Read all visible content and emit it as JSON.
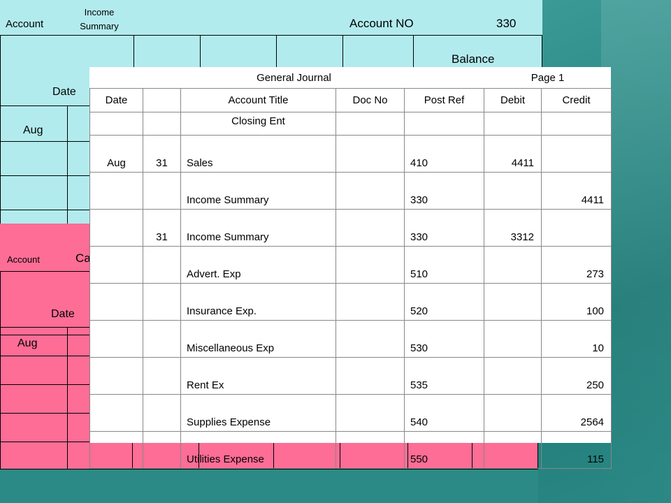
{
  "income_summary_ledger": {
    "account_label": "Account",
    "account_name": "Income Summary",
    "account_no_label": "Account NO",
    "account_no": "330",
    "balance_label": "Balance",
    "date_label": "Date",
    "month": "Aug"
  },
  "capital_ledger": {
    "account_label": "Account",
    "account_name_partial": "Ca",
    "date_label": "Date",
    "month": "Aug"
  },
  "journal": {
    "title": "General Journal",
    "page": "Page 1",
    "columns": [
      "Date",
      "",
      "Account Title",
      "Doc No",
      "Post Ref",
      "Debit",
      "Credit"
    ],
    "heading_row": "Closing Ent",
    "rows": [
      {
        "month": "Aug",
        "day": "31",
        "title": "Sales",
        "doc": "",
        "ref": "410",
        "debit": "4411",
        "credit": ""
      },
      {
        "month": "",
        "day": "",
        "title": "Income Summary",
        "doc": "",
        "ref": "330",
        "debit": "",
        "credit": "4411"
      },
      {
        "month": "",
        "day": "31",
        "title": "Income Summary",
        "doc": "",
        "ref": "330",
        "debit": "3312",
        "credit": ""
      },
      {
        "month": "",
        "day": "",
        "title": "Advert. Exp",
        "doc": "",
        "ref": " 510",
        "debit": "",
        "credit": "273"
      },
      {
        "month": "",
        "day": "",
        "title": "Insurance Exp.",
        "doc": "",
        "ref": " 520",
        "debit": "",
        "credit": "100"
      },
      {
        "month": "",
        "day": "",
        "title": "Miscellaneous Exp",
        "doc": "",
        "ref": "530",
        "debit": "",
        "credit": "10"
      },
      {
        "month": "",
        "day": "",
        "title": "Rent Ex",
        "doc": "",
        "ref": "535",
        "debit": "",
        "credit": "250"
      },
      {
        "month": "",
        "day": "",
        "title": "Supplies Expense",
        "doc": "",
        "ref": "540",
        "debit": "",
        "credit": "2564"
      },
      {
        "month": "",
        "day": "",
        "title": "Utilities Expense",
        "doc": "",
        "ref": "550",
        "debit": "",
        "credit": "115"
      }
    ]
  }
}
